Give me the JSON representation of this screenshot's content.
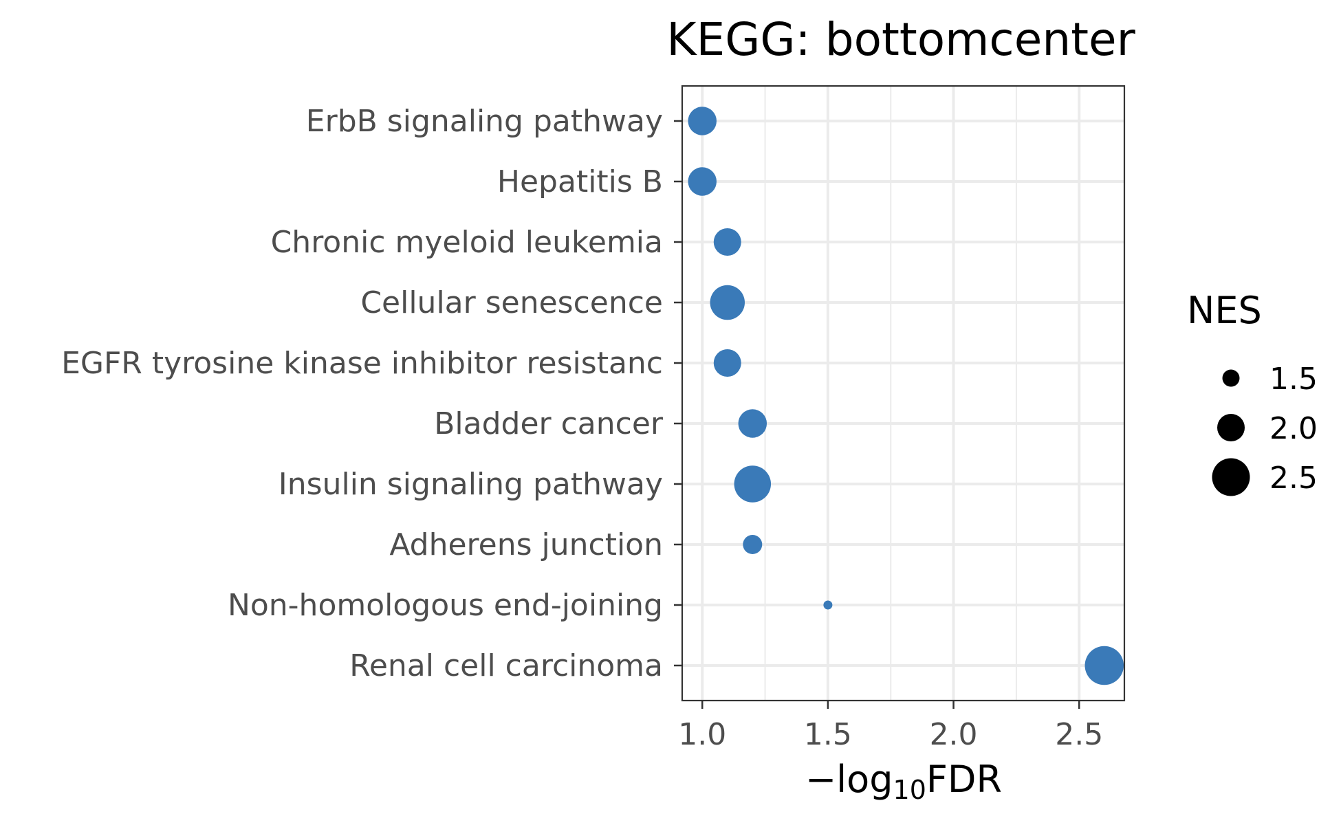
{
  "chart_data": {
    "type": "scatter",
    "title": "KEGG: bottomcenter",
    "xlabel": "−log10FDR",
    "xlabel_parts": {
      "prefix": "−log",
      "subscript": "10",
      "suffix": "FDR"
    },
    "ylabel": "",
    "xlim": [
      0.92,
      2.68
    ],
    "x_ticks": [
      1.0,
      1.5,
      2.0,
      2.5
    ],
    "x_tick_labels": [
      "1.0",
      "1.5",
      "2.0",
      "2.5"
    ],
    "grid": true,
    "color": "#3a7ab8",
    "categories": [
      "ErbB signaling pathway",
      "Hepatitis B",
      "Chronic myeloid leukemia",
      "Cellular senescence",
      "EGFR tyrosine kinase inhibitor resistanc",
      "Bladder cancer",
      "Insulin signaling pathway",
      "Adherens junction",
      "Non-homologous end-joining",
      "Renal cell carcinoma"
    ],
    "x": [
      1.0,
      1.0,
      1.1,
      1.1,
      1.1,
      1.2,
      1.2,
      1.2,
      1.5,
      2.6
    ],
    "size_values": [
      2.05,
      2.05,
      2.0,
      2.35,
      2.0,
      2.05,
      2.45,
      1.6,
      1.1,
      2.55
    ],
    "size_legend": {
      "title": "NES",
      "placement": "right",
      "values": [
        1.5,
        2.0,
        2.5
      ],
      "labels": [
        "1.5",
        "2.0",
        "2.5"
      ]
    }
  }
}
